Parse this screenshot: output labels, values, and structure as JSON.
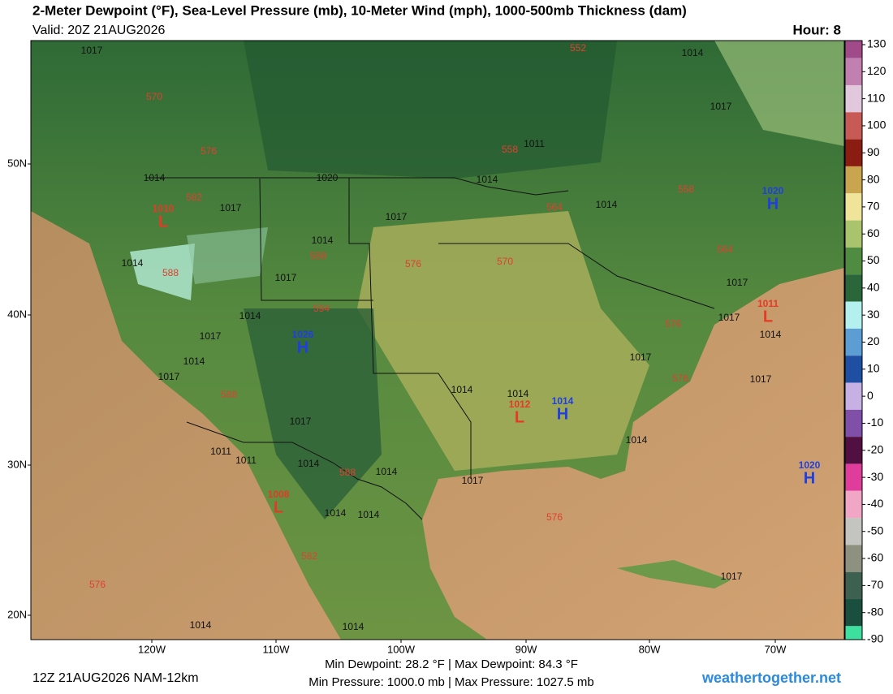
{
  "header": {
    "title": "2-Meter Dewpoint (°F), Sea-Level Pressure (mb), 10-Meter Wind (mph), 1000-500mb Thickness (dam)",
    "valid": "Valid: 20Z 21AUG2026",
    "hour": "Hour: 8"
  },
  "colorbar": {
    "ticks": [
      130,
      120,
      110,
      100,
      90,
      80,
      70,
      60,
      50,
      40,
      30,
      20,
      10,
      0,
      -10,
      -20,
      -30,
      -40,
      -50,
      -60,
      -70,
      -80,
      -90
    ],
    "colors": [
      "#a04a8a",
      "#c280b0",
      "#e2c8dc",
      "#c85a55",
      "#8a1c12",
      "#c8a54e",
      "#efe49a",
      "#a9c46c",
      "#4f8c42",
      "#2a663a",
      "#b4f0ee",
      "#5c9ed4",
      "#1f4fa2",
      "#c6b0e4",
      "#8050a8",
      "#521042",
      "#e03c9c",
      "#f2a6c6",
      "#c4c4c0",
      "#8e9080",
      "#3e6050",
      "#1a4e3e",
      "#3ee0a0"
    ]
  },
  "map": {
    "lat_labels": [
      "50N",
      "40N",
      "30N",
      "20N"
    ],
    "lon_labels": [
      "120W",
      "110W",
      "100W",
      "90W",
      "80W",
      "70W"
    ],
    "pressure_centers": [
      {
        "kind": "L",
        "value": "1010"
      },
      {
        "kind": "H",
        "value": "1026"
      },
      {
        "kind": "L",
        "value": "1012"
      },
      {
        "kind": "H",
        "value": "1014"
      },
      {
        "kind": "H",
        "value": "1020"
      },
      {
        "kind": "L",
        "value": "1011"
      },
      {
        "kind": "H",
        "value": "1020"
      },
      {
        "kind": "L",
        "value": "1008"
      }
    ],
    "isobar_labels": [
      "1017",
      "1014",
      "1017",
      "1011",
      "1014",
      "1020",
      "1014",
      "1017",
      "1017",
      "1014",
      "1014",
      "1014",
      "1017",
      "1017",
      "1017",
      "1014",
      "1014",
      "1017",
      "1014",
      "1017",
      "1017",
      "1017",
      "1014",
      "1014",
      "1017",
      "1014",
      "1011",
      "1011",
      "1014",
      "1014",
      "1017",
      "1014",
      "1014",
      "1017",
      "1014",
      "1014"
    ],
    "thickness_labels": [
      "570",
      "576",
      "582",
      "588",
      "588",
      "594",
      "588",
      "588",
      "582",
      "576",
      "576",
      "570",
      "564",
      "558",
      "552",
      "558",
      "564",
      "576",
      "576",
      "576"
    ]
  },
  "footer": {
    "run": "12Z 21AUG2026 NAM-12km",
    "dewpoint": "Min Dewpoint:  28.2 °F | Max Dewpoint:  84.3 °F",
    "pressure": "Min Pressure: 1000.0 mb | Max Pressure: 1027.5 mb",
    "site": "weathertogether.net"
  }
}
